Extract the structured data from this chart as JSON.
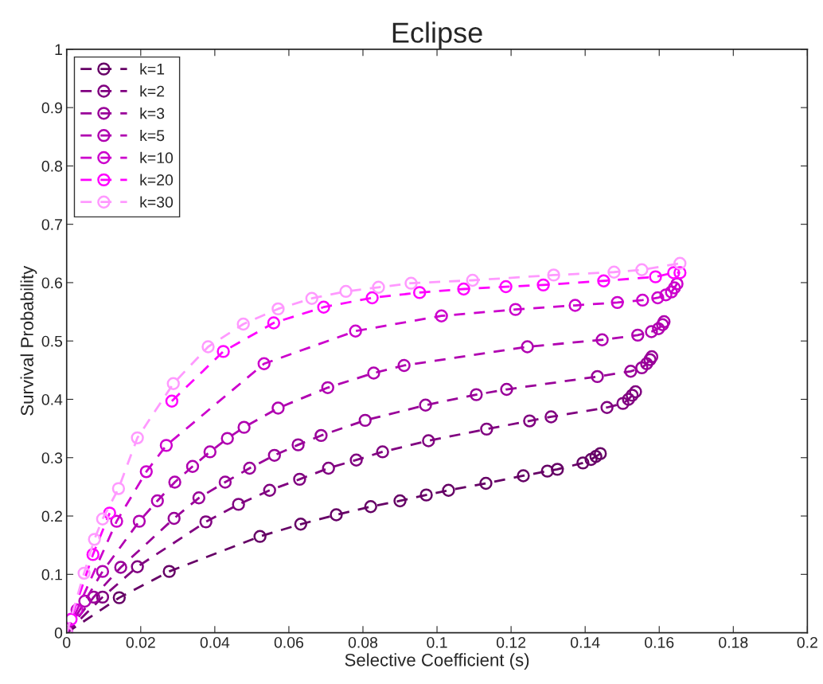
{
  "chart_data": {
    "type": "line",
    "title": "Eclipse",
    "xlabel": "Selective Coefficient (s)",
    "ylabel": "Survival Probability",
    "xlim": [
      0,
      0.2
    ],
    "xticks": [
      0,
      0.02,
      0.04,
      0.06,
      0.08,
      0.1,
      0.12,
      0.14,
      0.16,
      0.18,
      0.2
    ],
    "ylim": [
      0,
      1
    ],
    "yticks": [
      0,
      0.1,
      0.2,
      0.3,
      0.4,
      0.5,
      0.6,
      0.7,
      0.8,
      0.9,
      1
    ],
    "grid": false,
    "legend": "top left",
    "marker": "circle",
    "line_style": "dashed",
    "series": [
      {
        "name": "k=1",
        "color": "#660066",
        "x": [
          0,
          0.0142,
          0.0277,
          0.0522,
          0.0632,
          0.0728,
          0.0821,
          0.09,
          0.0971,
          0.1031,
          0.1132,
          0.1233,
          0.1298,
          0.1325,
          0.1394,
          0.1416,
          0.1429,
          0.1441
        ],
        "values": [
          0,
          0.06,
          0.105,
          0.165,
          0.186,
          0.202,
          0.216,
          0.226,
          0.236,
          0.244,
          0.256,
          0.269,
          0.277,
          0.28,
          0.291,
          0.297,
          0.302,
          0.307
        ]
      },
      {
        "name": "k=2",
        "color": "#800080",
        "x": [
          0,
          0.0097,
          0.0191,
          0.0376,
          0.0464,
          0.0548,
          0.0629,
          0.0707,
          0.0782,
          0.0853,
          0.0977,
          0.1134,
          0.125,
          0.1308,
          0.1459,
          0.1502,
          0.1517,
          0.1527,
          0.1536
        ],
        "values": [
          0,
          0.061,
          0.113,
          0.19,
          0.22,
          0.244,
          0.263,
          0.282,
          0.296,
          0.31,
          0.329,
          0.349,
          0.363,
          0.37,
          0.386,
          0.393,
          0.4,
          0.407,
          0.413
        ]
      },
      {
        "name": "k=3",
        "color": "#990099",
        "x": [
          0,
          0.0073,
          0.0146,
          0.029,
          0.0357,
          0.0428,
          0.0494,
          0.0561,
          0.0625,
          0.0687,
          0.0806,
          0.0969,
          0.1106,
          0.1188,
          0.1433,
          0.1523,
          0.1553,
          0.1566,
          0.1575,
          0.158
        ],
        "values": [
          0,
          0.061,
          0.112,
          0.196,
          0.231,
          0.258,
          0.282,
          0.304,
          0.322,
          0.338,
          0.364,
          0.39,
          0.408,
          0.417,
          0.439,
          0.448,
          0.454,
          0.461,
          0.468,
          0.473
        ]
      },
      {
        "name": "k=5",
        "color": "#b000b0",
        "x": [
          0,
          0.0049,
          0.0097,
          0.0196,
          0.0245,
          0.0292,
          0.034,
          0.0387,
          0.0434,
          0.0479,
          0.0571,
          0.0705,
          0.0829,
          0.0911,
          0.1244,
          0.1446,
          0.1542,
          0.1579,
          0.1598,
          0.1609,
          0.1613
        ],
        "values": [
          0,
          0.054,
          0.105,
          0.191,
          0.226,
          0.258,
          0.285,
          0.31,
          0.333,
          0.352,
          0.385,
          0.42,
          0.445,
          0.458,
          0.49,
          0.502,
          0.51,
          0.516,
          0.521,
          0.528,
          0.533
        ]
      },
      {
        "name": "k=10",
        "color": "#cc00cc",
        "x": [
          0,
          0.0028,
          0.0135,
          0.0215,
          0.0269,
          0.0533,
          0.078,
          0.1012,
          0.1212,
          0.1373,
          0.1487,
          0.1555,
          0.1596,
          0.1618,
          0.1633,
          0.1641,
          0.1648
        ],
        "values": [
          0,
          0.039,
          0.191,
          0.276,
          0.321,
          0.461,
          0.517,
          0.543,
          0.554,
          0.561,
          0.566,
          0.57,
          0.574,
          0.579,
          0.584,
          0.591,
          0.598
        ]
      },
      {
        "name": "k=20",
        "color": "#ff00ff",
        "x": [
          0,
          0.0012,
          0.0071,
          0.0116,
          0.014,
          0.0284,
          0.0423,
          0.0559,
          0.0694,
          0.0825,
          0.0953,
          0.1072,
          0.1186,
          0.1287,
          0.145,
          0.159,
          0.1639,
          0.1656
        ],
        "values": [
          0,
          0.023,
          0.134,
          0.205,
          null,
          0.397,
          0.482,
          0.531,
          0.558,
          0.574,
          0.583,
          0.589,
          0.593,
          0.596,
          0.603,
          0.61,
          0.617,
          0.617
        ]
      },
      {
        "name": "k=30",
        "color": "#ff99ff",
        "x": [
          0,
          0.0047,
          0.0075,
          0.0097,
          0.014,
          0.0191,
          0.0288,
          0.0382,
          0.0477,
          0.0571,
          0.0662,
          0.0754,
          0.0842,
          0.093,
          0.1096,
          0.1315,
          0.1478,
          0.1553,
          0.1656
        ],
        "values": [
          0,
          0.102,
          0.16,
          0.195,
          0.247,
          0.334,
          0.427,
          0.49,
          0.529,
          0.555,
          0.573,
          0.585,
          0.592,
          0.599,
          0.604,
          0.613,
          0.618,
          0.622,
          0.633
        ]
      }
    ]
  }
}
